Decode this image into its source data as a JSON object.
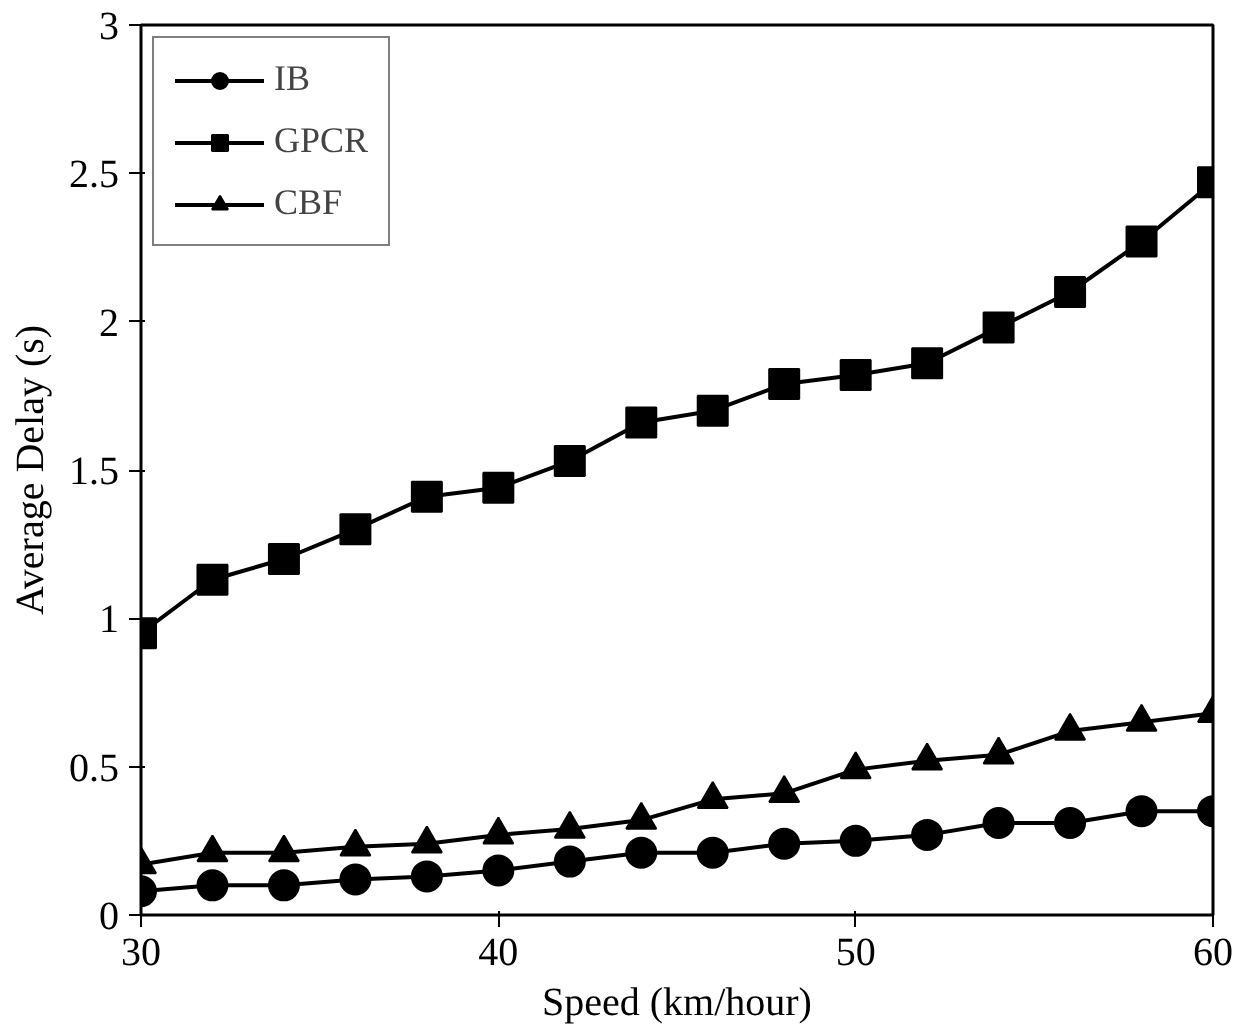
{
  "chart_data": {
    "type": "line",
    "xlabel": "Speed (km/hour)",
    "ylabel": "Average Delay (s)",
    "x": [
      30,
      32,
      34,
      36,
      38,
      40,
      42,
      44,
      46,
      48,
      50,
      52,
      54,
      56,
      58,
      60
    ],
    "xlim": [
      30,
      60
    ],
    "xticks": [
      30,
      40,
      50,
      60
    ],
    "ylim": [
      0,
      3
    ],
    "yticks": [
      0,
      0.5,
      1,
      1.5,
      2,
      2.5,
      3
    ],
    "grid": false,
    "legend": "top left",
    "line_style": "solid",
    "series": [
      {
        "name": "IB",
        "color": "#000000",
        "marker": "circle",
        "values": [
          0.08,
          0.1,
          0.1,
          0.12,
          0.13,
          0.15,
          0.18,
          0.21,
          0.21,
          0.24,
          0.25,
          0.27,
          0.31,
          0.31,
          0.35,
          0.35
        ]
      },
      {
        "name": "GPCR",
        "color": "#000000",
        "marker": "square",
        "values": [
          0.95,
          1.13,
          1.2,
          1.3,
          1.41,
          1.44,
          1.53,
          1.66,
          1.7,
          1.79,
          1.82,
          1.86,
          1.98,
          2.1,
          2.27,
          2.47
        ]
      },
      {
        "name": "CBF",
        "color": "#000000",
        "marker": "triangle",
        "values": [
          0.17,
          0.21,
          0.21,
          0.23,
          0.24,
          0.27,
          0.29,
          0.32,
          0.39,
          0.41,
          0.49,
          0.52,
          0.54,
          0.62,
          0.65,
          0.68
        ]
      }
    ]
  }
}
